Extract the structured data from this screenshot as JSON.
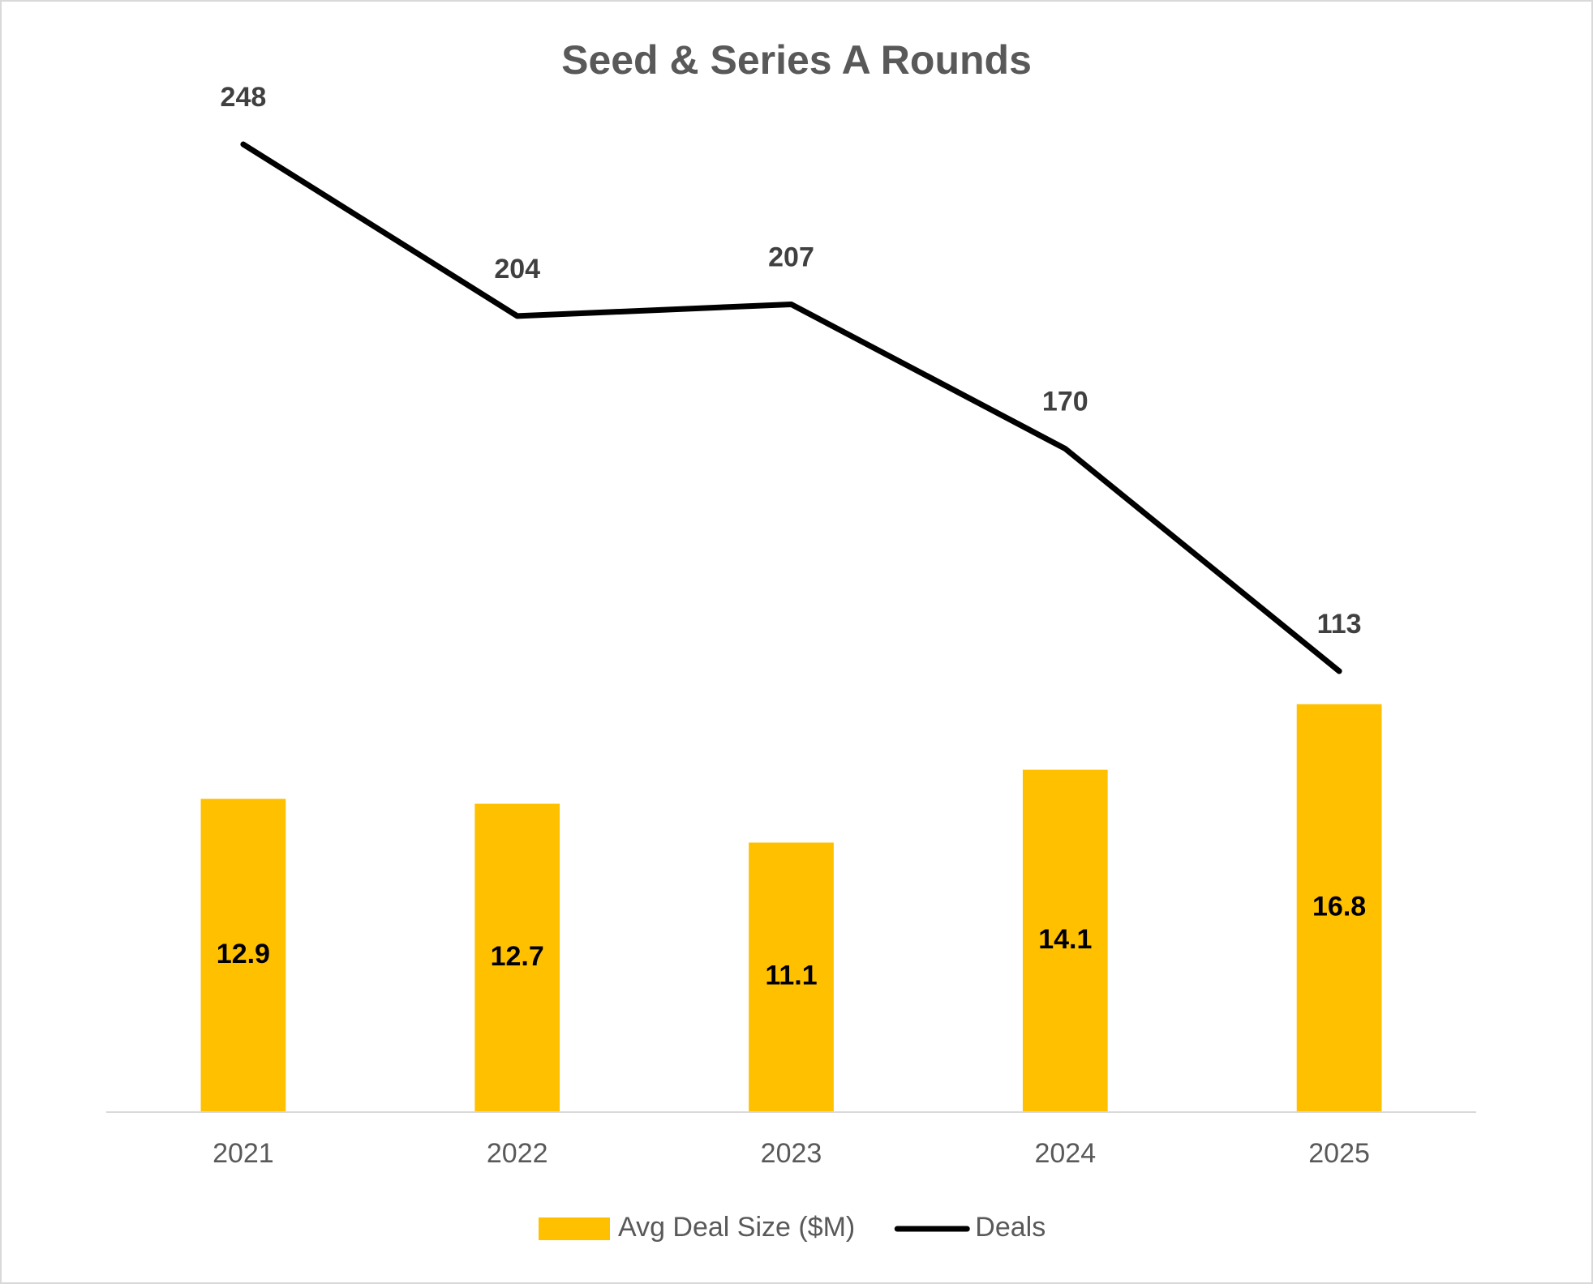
{
  "chart_data": {
    "type": "bar-line",
    "title": "Seed & Series A Rounds",
    "categories": [
      "2021",
      "2022",
      "2023",
      "2024",
      "2025"
    ],
    "series": [
      {
        "name": "Avg Deal Size ($M)",
        "type": "bar",
        "color": "#FFC000",
        "values": [
          12.9,
          12.7,
          11.1,
          14.1,
          16.8
        ]
      },
      {
        "name": "Deals",
        "type": "line",
        "axis": "y2",
        "color": "#000000",
        "values": [
          248,
          204,
          207,
          170,
          113
        ]
      }
    ],
    "ylim": [
      0,
      45
    ],
    "y2lim": [
      0,
      280
    ],
    "grid": false,
    "legend": "bottom"
  }
}
